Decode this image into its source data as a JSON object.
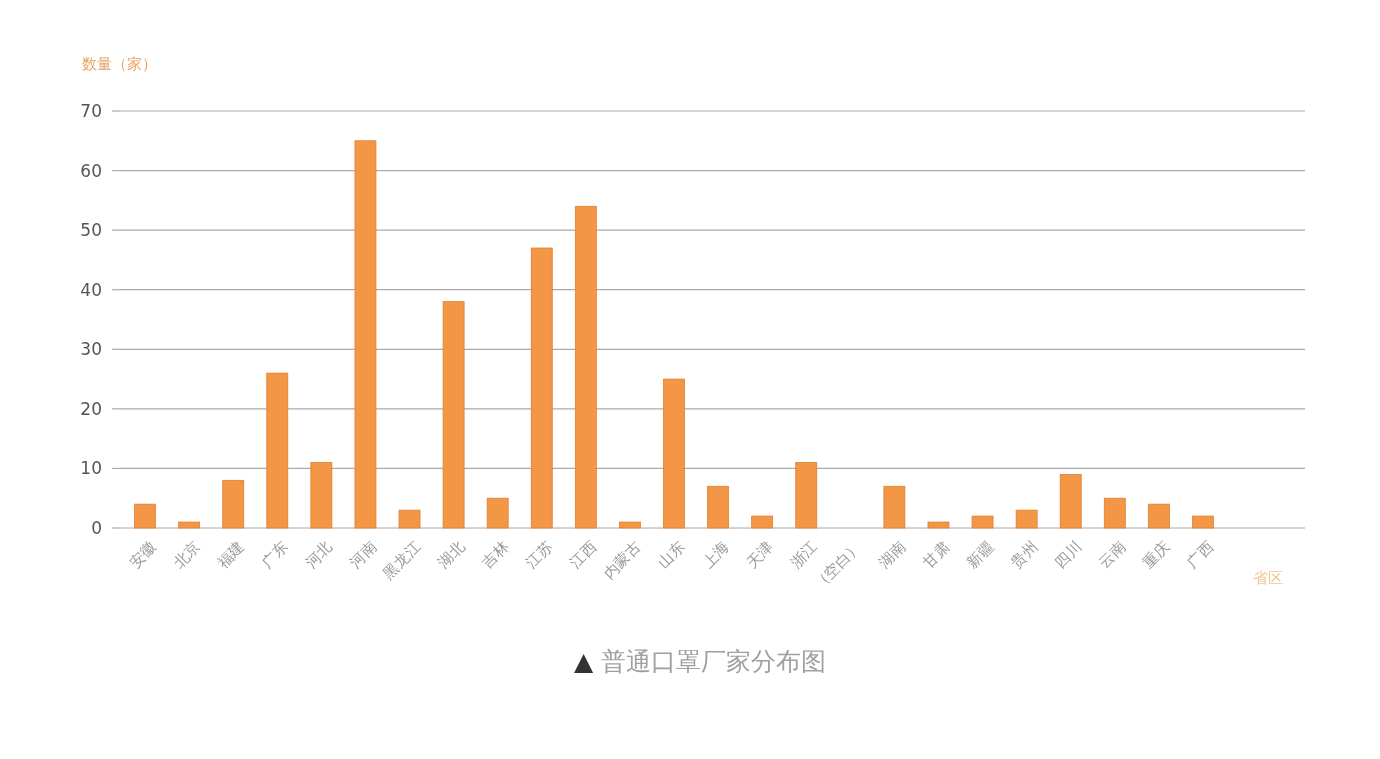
{
  "chart_data": {
    "type": "bar",
    "title": "▲ 普通口罩厂家分布图",
    "xlabel": "省区",
    "ylabel": "数量（家）",
    "categories": [
      "安徽",
      "北京",
      "福建",
      "广东",
      "河北",
      "河南",
      "黑龙江",
      "湖北",
      "吉林",
      "江苏",
      "江西",
      "内蒙古",
      "山东",
      "上海",
      "天津",
      "浙江",
      "（空白）",
      "湖南",
      "甘肃",
      "新疆",
      "贵州",
      "四川",
      "云南",
      "重庆",
      "广西"
    ],
    "values": [
      4,
      1,
      8,
      26,
      11,
      65,
      3,
      38,
      5,
      47,
      54,
      1,
      25,
      7,
      2,
      11,
      null,
      7,
      1,
      2,
      3,
      9,
      5,
      4,
      2
    ],
    "color": "#f39646",
    "ylim": [
      0,
      70
    ],
    "yticks": [
      0,
      10,
      20,
      30,
      40,
      50,
      60,
      70
    ],
    "grid": "y"
  }
}
